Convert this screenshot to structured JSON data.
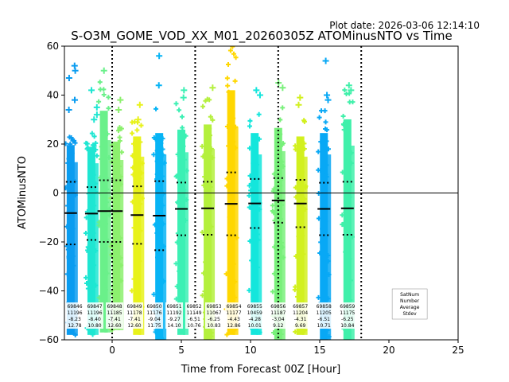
{
  "chart_data": {
    "type": "scatter",
    "plot_date": "Plot date: 2026-03-06 12:14:10",
    "title": "S-O3M_GOME_VOD_XX_M01_20260305Z ATOMinusNTO vs Time",
    "xlabel": "Time from Forecast 00Z [Hour]",
    "ylabel": "ATOMinusNTO",
    "xlim": [
      -3.45,
      25
    ],
    "ylim": [
      -60,
      60
    ],
    "xticks": [
      "0",
      "5",
      "10",
      "15",
      "20",
      "25"
    ],
    "xtick_values": [
      0,
      5,
      10,
      15,
      20,
      25
    ],
    "yticks": [
      "60",
      "40",
      "20",
      "0",
      "−20",
      "−40",
      "−60"
    ],
    "ytick_values": [
      60,
      40,
      20,
      0,
      -20,
      -40,
      -60
    ],
    "zero_line": 0,
    "vertical_dotted_lines": [
      0,
      6,
      12,
      18
    ],
    "stat_row_labels": [
      "SatNum",
      "Number",
      "Average",
      "Stdev"
    ],
    "groups": [
      {
        "orbit": "69846",
        "x": -3.0,
        "number": "11196",
        "average": -8.23,
        "stdev": 12.78,
        "color": "#0a9cf0",
        "min": -58,
        "max": 28,
        "outliers": [
          52,
          50,
          47,
          38,
          34
        ]
      },
      {
        "orbit": "69847",
        "x": -1.5,
        "number": "11196",
        "average": -8.4,
        "stdev": 10.8,
        "color": "#1ee6d2",
        "min": -58,
        "max": 27,
        "outliers": [
          42,
          35,
          32,
          30
        ]
      },
      {
        "orbit": "69848",
        "x": -0.6,
        "number": "11185",
        "average": -7.41,
        "stdev": 12.6,
        "color": "#6af08a",
        "min": -57,
        "max": 48,
        "outliers": [
          50
        ]
      },
      {
        "orbit": "69849",
        "x": 0.3,
        "number": "11178",
        "average": -7.41,
        "stdev": 12.6,
        "color": "#8cf06e",
        "min": -56,
        "max": 30,
        "outliers": [
          38,
          34
        ]
      },
      {
        "orbit": "69850",
        "x": 1.8,
        "number": "11176",
        "average": -9.04,
        "stdev": 11.75,
        "color": "#e8f21a",
        "min": -58,
        "max": 33,
        "outliers": [
          36,
          30
        ]
      },
      {
        "orbit": "69851",
        "x": 3.4,
        "number": "11192",
        "average": -9.27,
        "stdev": 14.1,
        "color": "#07b4f5",
        "min": -60,
        "max": 35,
        "outliers": [
          56,
          44
        ]
      },
      {
        "orbit": "69852",
        "x": 5.0,
        "number": "11149",
        "average": -6.51,
        "stdev": 10.76,
        "color": "#3cf0b4",
        "min": -58,
        "max": 37,
        "outliers": [
          42,
          39
        ]
      },
      {
        "orbit": "69853",
        "x": 6.9,
        "number": "11067",
        "average": -6.25,
        "stdev": 10.83,
        "color": "#b4f03c",
        "min": -60,
        "max": 40,
        "outliers": [
          43
        ]
      },
      {
        "orbit": "69854",
        "x": 8.6,
        "number": "11177",
        "average": -4.43,
        "stdev": 12.86,
        "color": "#ffd700",
        "min": -58,
        "max": 60,
        "outliers": []
      },
      {
        "orbit": "69855",
        "x": 10.3,
        "number": "10459",
        "average": -4.28,
        "stdev": 10.01,
        "color": "#14e6dc",
        "min": -58,
        "max": 35,
        "outliers": [
          42,
          40
        ]
      },
      {
        "orbit": "69856",
        "x": 12.0,
        "number": "11187",
        "average": -3.04,
        "stdev": 9.12,
        "color": "#78f07a",
        "min": -60,
        "max": 38,
        "outliers": [
          45,
          43
        ]
      },
      {
        "orbit": "69857",
        "x": 13.6,
        "number": "11204",
        "average": -4.31,
        "stdev": 9.69,
        "color": "#d2f01e",
        "min": -58,
        "max": 33,
        "outliers": [
          39,
          36
        ]
      },
      {
        "orbit": "69858",
        "x": 15.3,
        "number": "11205",
        "average": -6.51,
        "stdev": 10.71,
        "color": "#08a8f5",
        "min": -60,
        "max": 35,
        "outliers": [
          54,
          40,
          38
        ]
      },
      {
        "orbit": "69859",
        "x": 17.0,
        "number": "11175",
        "average": -6.25,
        "stdev": 10.84,
        "color": "#40f0aa",
        "min": -60,
        "max": 43,
        "outliers": [
          44,
          42
        ]
      }
    ]
  }
}
